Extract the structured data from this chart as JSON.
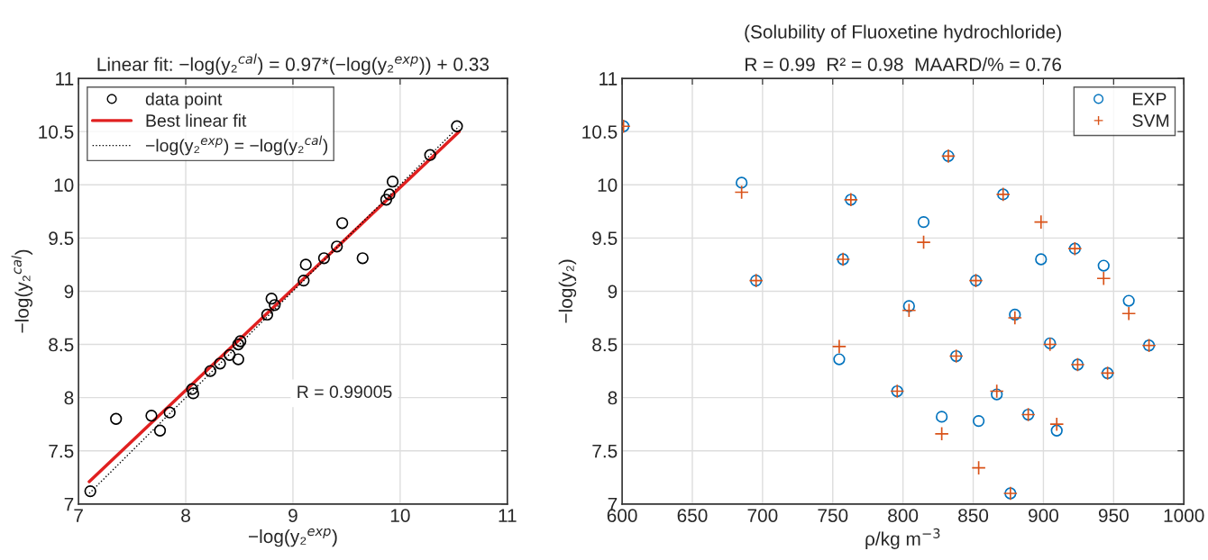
{
  "chart_data": [
    {
      "type": "scatter",
      "title": "Linear fit: −log(y₂$^{cal}$) = 0.97*(−log(y₂$^{exp}$)) + 0.33",
      "xlabel": "−log(y₂$^{exp}$)",
      "ylabel": "−log(y₂$^{cal}$)",
      "xlim": [
        7,
        11
      ],
      "ylim": [
        7,
        11
      ],
      "xticks": [
        7,
        8,
        9,
        10,
        11
      ],
      "yticks": [
        7,
        7.5,
        8,
        8.5,
        9,
        9.5,
        10,
        10.5,
        11
      ],
      "grid": true,
      "legend": "top left",
      "annotations": [
        "R = 0.99005"
      ],
      "series": [
        {
          "name": "data point",
          "color": "#000000",
          "marker": "circle",
          "x": [
            7.11,
            7.35,
            7.68,
            7.76,
            7.85,
            8.06,
            8.07,
            8.23,
            8.32,
            8.41,
            8.49,
            8.51,
            8.49,
            8.76,
            8.8,
            8.83,
            9.1,
            9.12,
            9.29,
            9.41,
            9.46,
            9.65,
            9.87,
            9.9,
            9.93,
            10.28,
            10.53
          ],
          "values": [
            7.12,
            7.8,
            7.83,
            7.69,
            7.86,
            8.08,
            8.04,
            8.25,
            8.32,
            8.4,
            8.5,
            8.53,
            8.36,
            8.78,
            8.93,
            8.87,
            9.1,
            9.25,
            9.31,
            9.42,
            9.64,
            9.31,
            9.86,
            9.91,
            10.03,
            10.28,
            10.55
          ]
        },
        {
          "type": "line",
          "name": "Best linear fit",
          "color": "#e02020",
          "line_style": "solid",
          "x": [
            7.1,
            10.55
          ],
          "values": [
            7.21,
            10.5
          ]
        },
        {
          "type": "line",
          "name": "−log(y₂$^{exp}$) = −log(y₂$^{cal}$)",
          "color": "#000000",
          "line_style": "dotted",
          "x": [
            7.1,
            10.55
          ],
          "values": [
            7.1,
            10.55
          ]
        }
      ]
    },
    {
      "type": "scatter",
      "title": "(Solubility of Fluoxetine hydrochloride)",
      "subtitle": "R = 0.99  R² = 0.98  MAARD/% = 0.76",
      "xlabel": "ρ/kg m$^{−3}$",
      "ylabel": "−log(y₂)",
      "xlim": [
        600,
        1000
      ],
      "ylim": [
        7,
        11
      ],
      "xticks": [
        600,
        650,
        700,
        750,
        800,
        850,
        900,
        950,
        1000
      ],
      "yticks": [
        7,
        7.5,
        8,
        8.5,
        9,
        9.5,
        10,
        10.5,
        11
      ],
      "grid": true,
      "legend": "top right",
      "series": [
        {
          "name": "EXP",
          "color": "#0072bd",
          "marker": "circle",
          "x": [
            601,
            685.1,
            695.4,
            762.9,
            757.3,
            754.6,
            795.9,
            832.3,
            871.3,
            814.7,
            898.3,
            922.4,
            942.9,
            851.9,
            960.8,
            804.3,
            879.7,
            904.7,
            975.2,
            837.9,
            924.4,
            945.7,
            866.8,
            827.6,
            853.9,
            889.2,
            909.5,
            876.5
          ],
          "values": [
            10.55,
            10.02,
            9.1,
            9.86,
            9.3,
            8.36,
            8.06,
            10.27,
            9.91,
            9.65,
            9.3,
            9.4,
            9.24,
            9.1,
            8.91,
            8.86,
            8.78,
            8.51,
            8.49,
            8.39,
            8.31,
            8.23,
            8.03,
            7.82,
            7.78,
            7.84,
            7.69,
            7.1
          ]
        },
        {
          "name": "SVM",
          "color": "#d95319",
          "marker": "cross",
          "x": [
            601,
            685.1,
            695.4,
            762.9,
            757.3,
            754.6,
            795.9,
            832.3,
            871.3,
            814.7,
            898.3,
            922.4,
            942.9,
            851.9,
            960.8,
            804.3,
            879.7,
            904.7,
            975.2,
            837.9,
            924.4,
            945.7,
            866.8,
            827.6,
            853.9,
            889.2,
            909.5,
            876.5
          ],
          "values": [
            10.55,
            9.93,
            9.1,
            9.86,
            9.3,
            8.48,
            8.06,
            10.27,
            9.91,
            9.46,
            9.65,
            9.4,
            9.12,
            9.1,
            8.79,
            8.82,
            8.75,
            8.5,
            8.49,
            8.39,
            8.31,
            8.23,
            8.06,
            7.66,
            7.34,
            7.84,
            7.75,
            7.1
          ]
        }
      ]
    }
  ]
}
